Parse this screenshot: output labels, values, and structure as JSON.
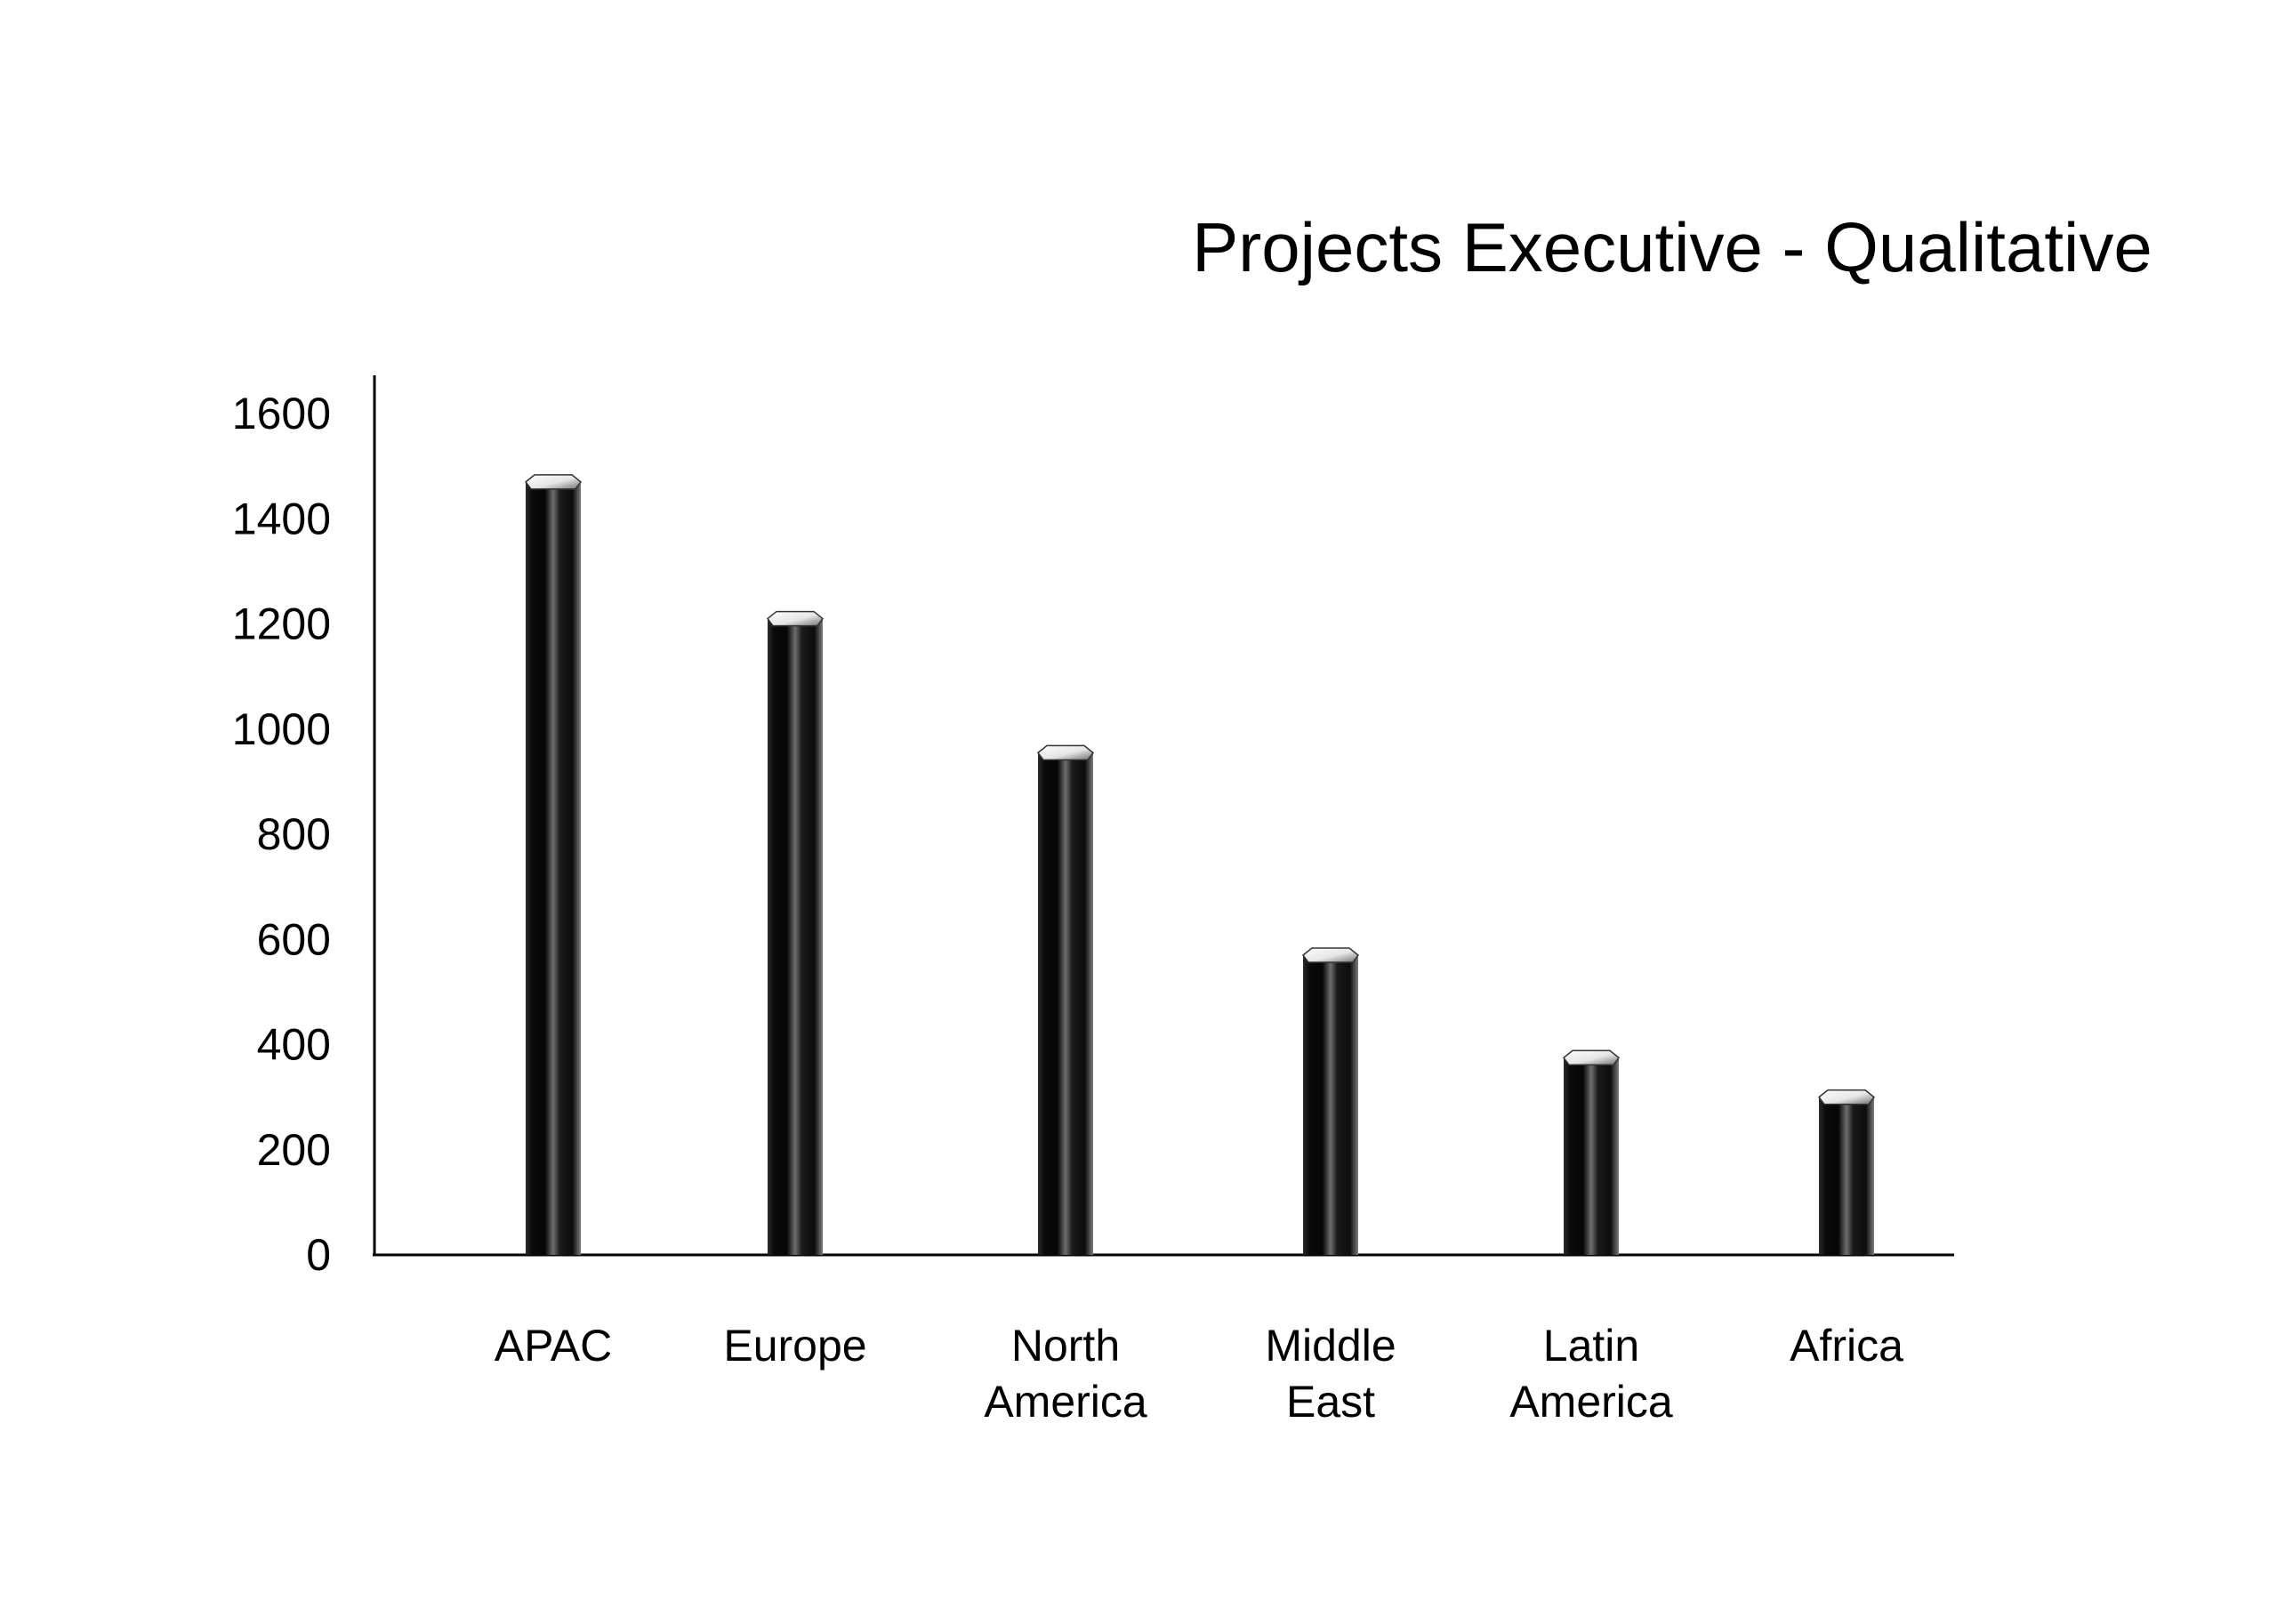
{
  "chart_data": {
    "type": "bar",
    "title": "Projects Executive - Qualitative",
    "xlabel": "",
    "ylabel": "",
    "categories": [
      "APAC",
      "Europe",
      "North America",
      "Middle East",
      "Latin America",
      "Africa"
    ],
    "category_lines": [
      [
        "APAC"
      ],
      [
        "Europe"
      ],
      [
        "North",
        "America"
      ],
      [
        "Middle",
        "East"
      ],
      [
        "Latin",
        "America"
      ],
      [
        "Africa"
      ]
    ],
    "values": [
      1470,
      1210,
      955,
      570,
      375,
      300
    ],
    "yticks": [
      0,
      200,
      400,
      600,
      800,
      1000,
      1200,
      1400,
      1600
    ],
    "ylim": [
      0,
      1680
    ],
    "grid": false,
    "legend": "none",
    "colors": {
      "bar_dark": "#111111",
      "bar_highlight": "#8a8a8a",
      "bar_cap_light": "#ffffff",
      "bar_cap_shadow": "#7a7a7a",
      "axis": "#000000",
      "text": "#000000"
    }
  }
}
